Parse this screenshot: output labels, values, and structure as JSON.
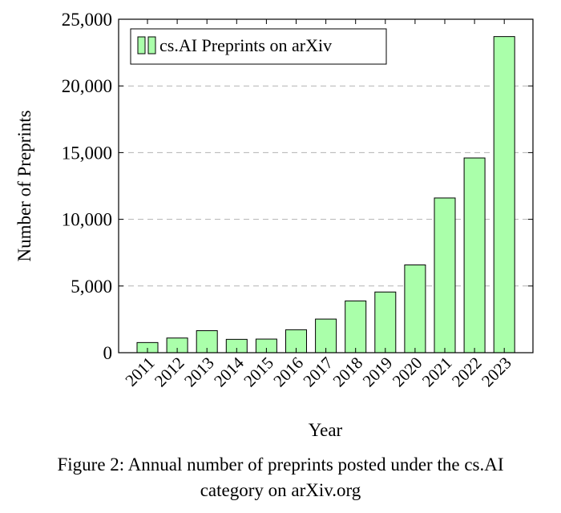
{
  "chart_data": {
    "type": "bar",
    "categories": [
      "2011",
      "2012",
      "2013",
      "2014",
      "2015",
      "2016",
      "2017",
      "2018",
      "2019",
      "2020",
      "2021",
      "2022",
      "2023"
    ],
    "series": [
      {
        "name": "cs.AI Preprints on arXiv",
        "values": [
          760,
          1100,
          1650,
          1000,
          1020,
          1720,
          2520,
          3880,
          4550,
          6580,
          11600,
          14600,
          23700
        ]
      }
    ],
    "xlabel": "Year",
    "ylabel": "Number of Preprints",
    "ylim": [
      0,
      25000
    ],
    "yticks": [
      0,
      5000,
      10000,
      15000,
      20000,
      25000
    ],
    "ytick_labels": [
      "0",
      "5,000",
      "10,000",
      "15,000",
      "20,000",
      "25,000"
    ],
    "grid": "horizontal dashed",
    "legend_position": "top-left",
    "colors": {
      "bar_fill": "#aaffaa",
      "bar_stroke": "#000000",
      "grid": "#b3b3b3"
    }
  },
  "caption": {
    "line1": "Figure 2: Annual number of preprints posted under the cs.AI",
    "line2": "category on arXiv.org"
  }
}
